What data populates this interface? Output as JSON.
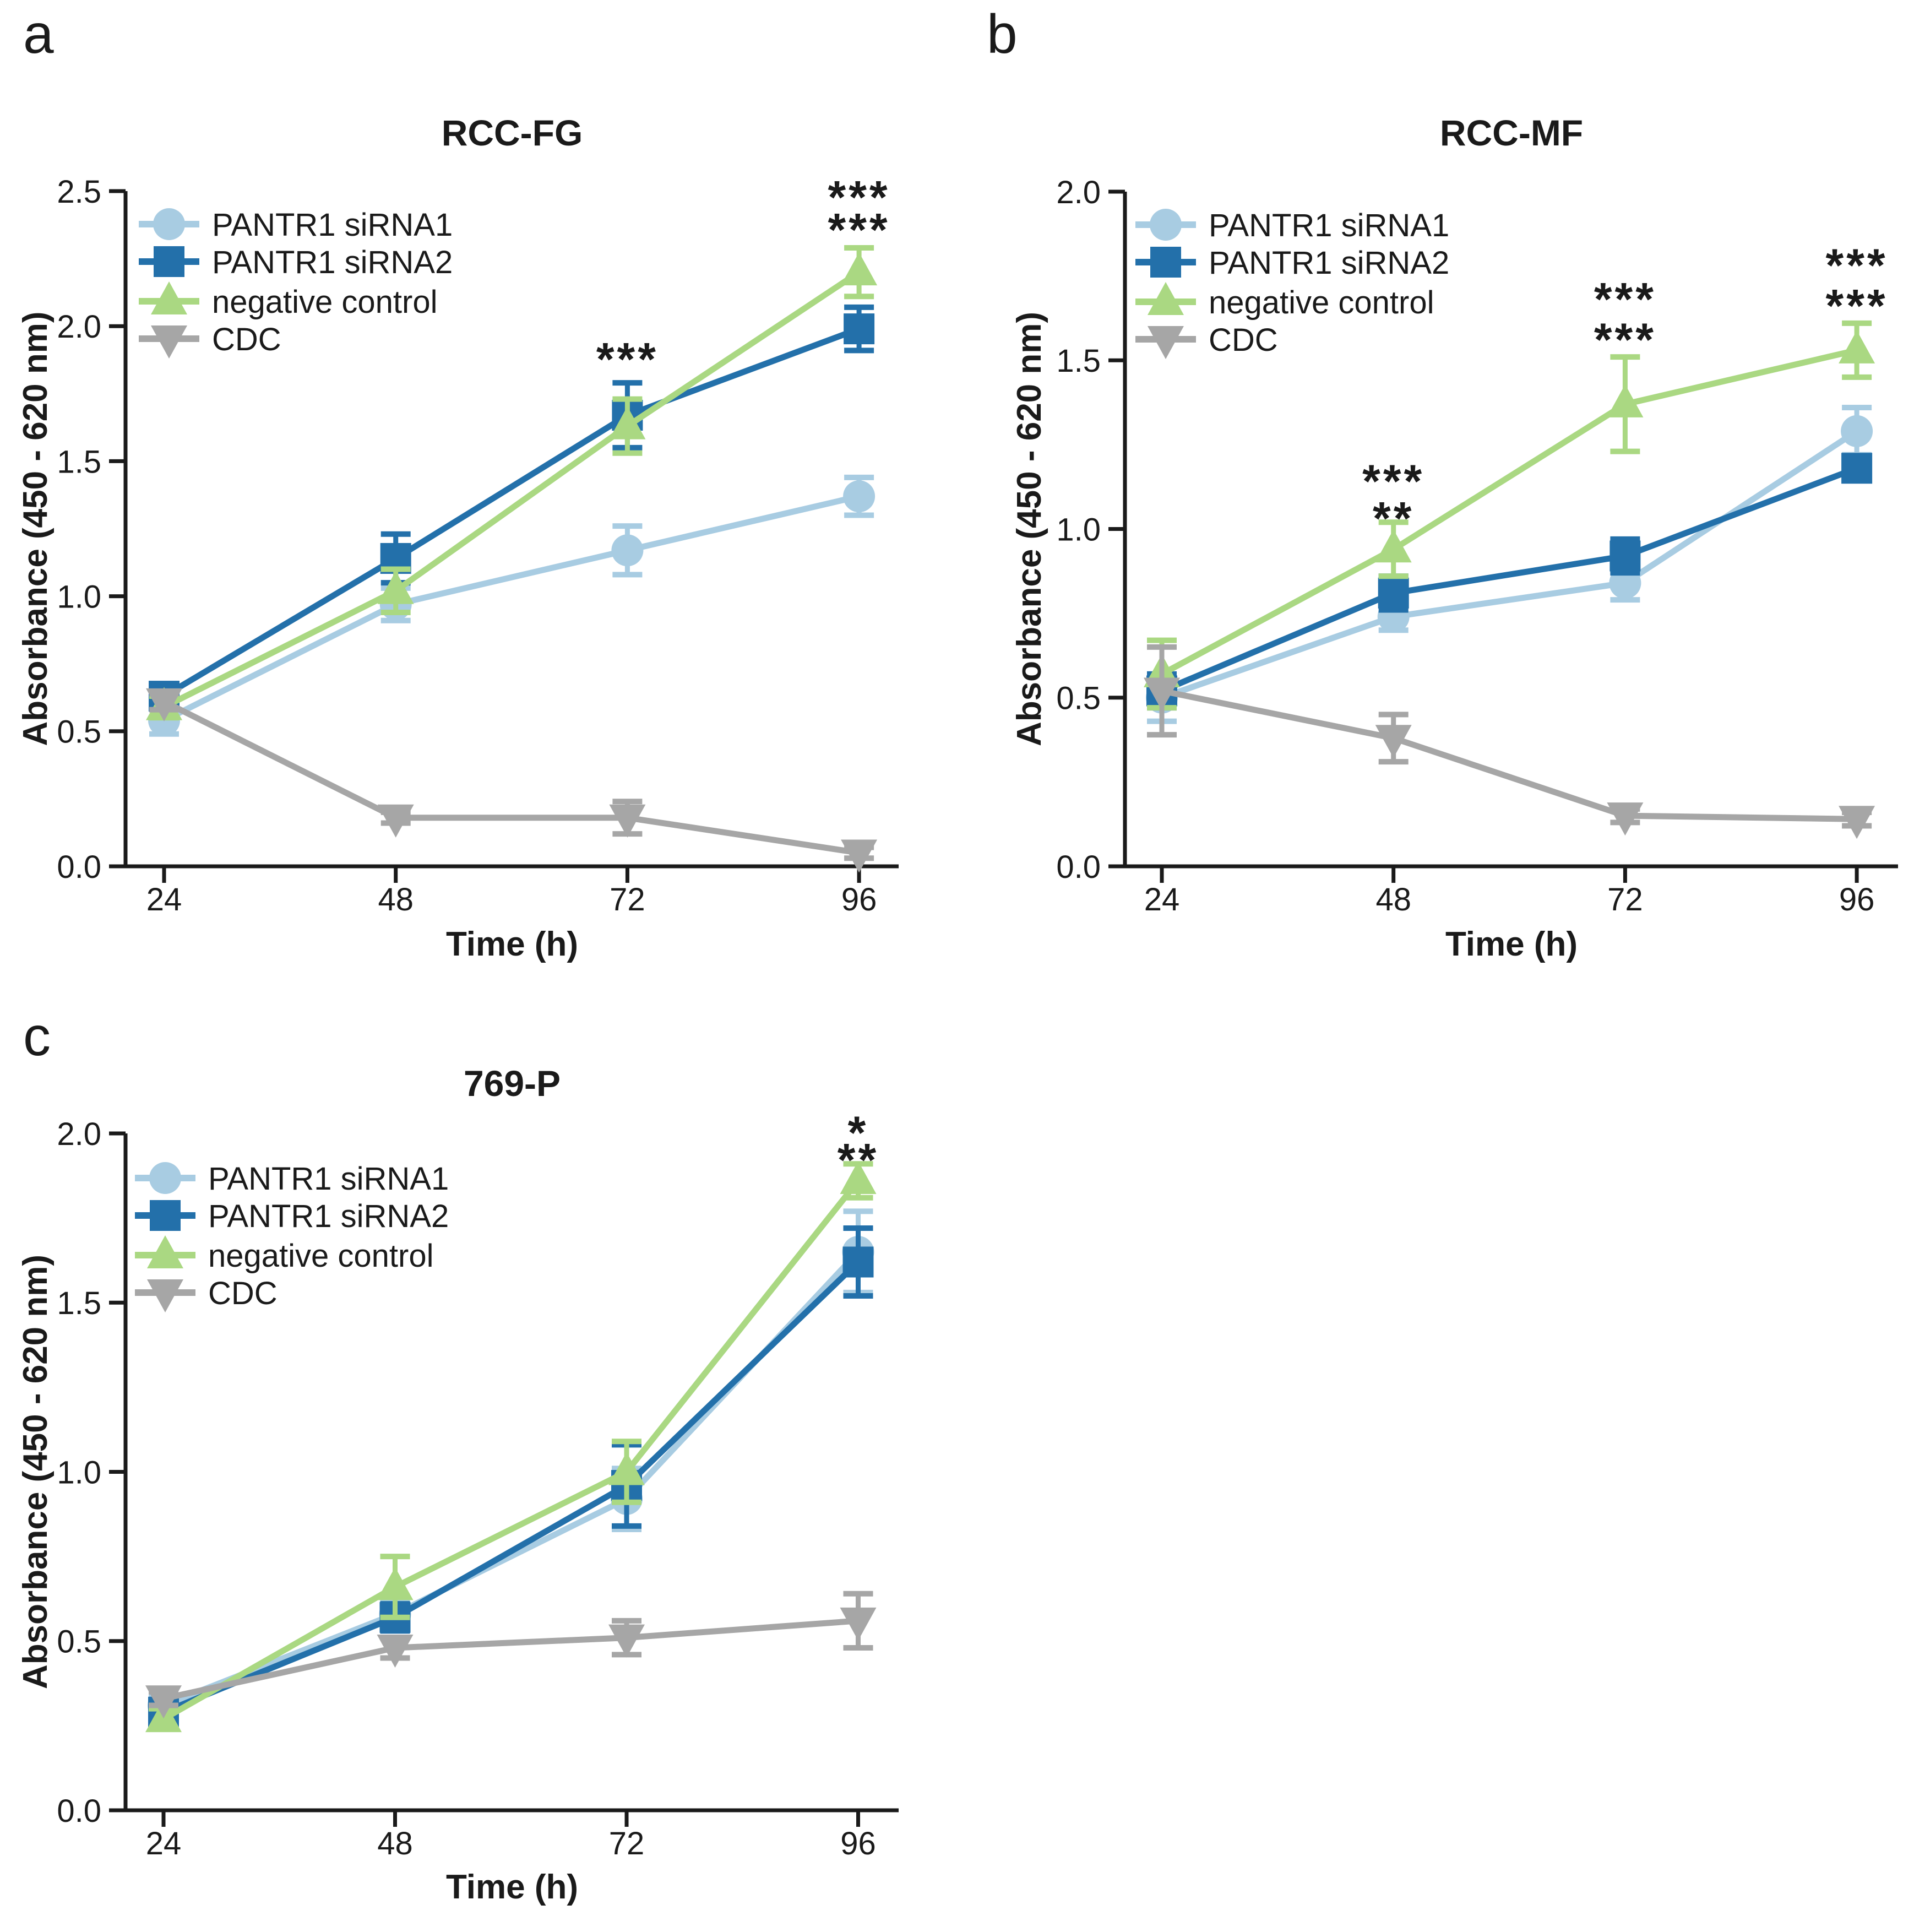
{
  "figure_type": "multi-panel line chart figure",
  "panel_labels": [
    "a",
    "b",
    "c"
  ],
  "colors": {
    "siRNA1": "#A8CCE2",
    "siRNA2": "#2370AA",
    "negative_control": "#AAD882",
    "cdc": "#A6A6A6",
    "axis": "#1A1A1A"
  },
  "chart_data": [
    {
      "type": "line",
      "panel_label": "a",
      "title": "RCC-FG",
      "xlabel": "Time (h)",
      "ylabel": "Absorbance (450 - 620 nm)",
      "x": [
        24,
        48,
        72,
        96
      ],
      "xtick_labels": [
        "24",
        "48",
        "72",
        "96"
      ],
      "ylim": [
        0,
        2.5
      ],
      "ytick_labels": [
        "0.0",
        "0.5",
        "1.0",
        "1.5",
        "2.0",
        "2.5"
      ],
      "grid": false,
      "legend_position": "inside-top-left",
      "series": [
        {
          "name": "PANTR1 siRNA1",
          "color_key": "siRNA1",
          "marker": "circle",
          "values": [
            0.54,
            0.97,
            1.17,
            1.37
          ],
          "errors": [
            0.05,
            0.06,
            0.09,
            0.07
          ]
        },
        {
          "name": "PANTR1 siRNA2",
          "color_key": "siRNA2",
          "marker": "square",
          "values": [
            0.63,
            1.14,
            1.67,
            1.99
          ],
          "errors": [
            0.04,
            0.09,
            0.12,
            0.08
          ]
        },
        {
          "name": "negative control",
          "color_key": "negative_control",
          "marker": "triangle-up",
          "values": [
            0.59,
            1.02,
            1.63,
            2.2
          ],
          "errors": [
            0.04,
            0.08,
            0.1,
            0.09
          ]
        },
        {
          "name": "CDC",
          "color_key": "cdc",
          "marker": "triangle-down",
          "values": [
            0.61,
            0.18,
            0.18,
            0.05
          ],
          "errors": [
            0.03,
            0.02,
            0.06,
            0.02
          ]
        }
      ],
      "significance": [
        {
          "x": 72,
          "marks": [
            {
              "text": "***",
              "color_key": "siRNA1",
              "value": 1.9
            }
          ]
        },
        {
          "x": 96,
          "marks": [
            {
              "text": "***",
              "color_key": "siRNA1",
              "value": 2.5
            },
            {
              "text": "***",
              "color_key": "siRNA2",
              "value": 2.38
            }
          ]
        }
      ]
    },
    {
      "type": "line",
      "panel_label": "b",
      "title": "RCC-MF",
      "xlabel": "Time (h)",
      "ylabel": "Absorbance (450 - 620 nm)",
      "x": [
        24,
        48,
        72,
        96
      ],
      "xtick_labels": [
        "24",
        "48",
        "72",
        "96"
      ],
      "ylim": [
        0,
        2.0
      ],
      "ytick_labels": [
        "0.0",
        "0.5",
        "1.0",
        "1.5",
        "2.0"
      ],
      "grid": false,
      "legend_position": "inside-top-left",
      "series": [
        {
          "name": "PANTR1 siRNA1",
          "color_key": "siRNA1",
          "marker": "circle",
          "values": [
            0.5,
            0.74,
            0.84,
            1.29
          ],
          "errors": [
            0.07,
            0.04,
            0.05,
            0.07
          ]
        },
        {
          "name": "PANTR1 siRNA2",
          "color_key": "siRNA2",
          "marker": "square",
          "values": [
            0.52,
            0.81,
            0.92,
            1.18
          ],
          "errors": [
            0.05,
            0.05,
            0.05,
            0.03
          ]
        },
        {
          "name": "negative control",
          "color_key": "negative_control",
          "marker": "triangle-up",
          "values": [
            0.57,
            0.94,
            1.37,
            1.53
          ],
          "errors": [
            0.1,
            0.08,
            0.14,
            0.08
          ]
        },
        {
          "name": "CDC",
          "color_key": "cdc",
          "marker": "triangle-down",
          "values": [
            0.52,
            0.38,
            0.15,
            0.14
          ],
          "errors": [
            0.13,
            0.07,
            0.02,
            0.02
          ]
        }
      ],
      "significance": [
        {
          "x": 48,
          "marks": [
            {
              "text": "***",
              "color_key": "siRNA1",
              "value": 1.16
            },
            {
              "text": "**",
              "color_key": "siRNA2",
              "value": 1.05
            }
          ]
        },
        {
          "x": 72,
          "marks": [
            {
              "text": "***",
              "color_key": "siRNA1",
              "value": 1.7
            },
            {
              "text": "***",
              "color_key": "siRNA2",
              "value": 1.58
            }
          ]
        },
        {
          "x": 96,
          "marks": [
            {
              "text": "***",
              "color_key": "siRNA1",
              "value": 1.8
            },
            {
              "text": "***",
              "color_key": "siRNA2",
              "value": 1.68
            }
          ]
        }
      ]
    },
    {
      "type": "line",
      "panel_label": "c",
      "title": "769-P",
      "xlabel": "Time (h)",
      "ylabel": "Absorbance (450 - 620 nm)",
      "x": [
        24,
        48,
        72,
        96
      ],
      "xtick_labels": [
        "24",
        "48",
        "72",
        "96"
      ],
      "ylim": [
        0,
        2.0
      ],
      "ytick_labels": [
        "0.0",
        "0.5",
        "1.0",
        "1.5",
        "2.0"
      ],
      "grid": false,
      "legend_position": "inside-top-left",
      "series": [
        {
          "name": "PANTR1 siRNA1",
          "color_key": "siRNA1",
          "marker": "circle",
          "values": [
            0.31,
            0.58,
            0.92,
            1.65
          ],
          "errors": [
            0.03,
            0.04,
            0.09,
            0.12
          ]
        },
        {
          "name": "PANTR1 siRNA2",
          "color_key": "siRNA2",
          "marker": "square",
          "values": [
            0.29,
            0.57,
            0.96,
            1.62
          ],
          "errors": [
            0.03,
            0.04,
            0.12,
            0.1
          ]
        },
        {
          "name": "negative control",
          "color_key": "negative_control",
          "marker": "triangle-up",
          "values": [
            0.27,
            0.66,
            1.0,
            1.86
          ],
          "errors": [
            0.03,
            0.09,
            0.09,
            0.05
          ]
        },
        {
          "name": "CDC",
          "color_key": "cdc",
          "marker": "triangle-down",
          "values": [
            0.33,
            0.48,
            0.51,
            0.56
          ],
          "errors": [
            0.02,
            0.03,
            0.05,
            0.08
          ]
        }
      ],
      "significance": [
        {
          "x": 96,
          "marks": [
            {
              "text": "*",
              "color_key": "siRNA1",
              "value": 2.02
            },
            {
              "text": "**",
              "color_key": "siRNA2",
              "value": 1.94
            }
          ]
        }
      ]
    }
  ]
}
